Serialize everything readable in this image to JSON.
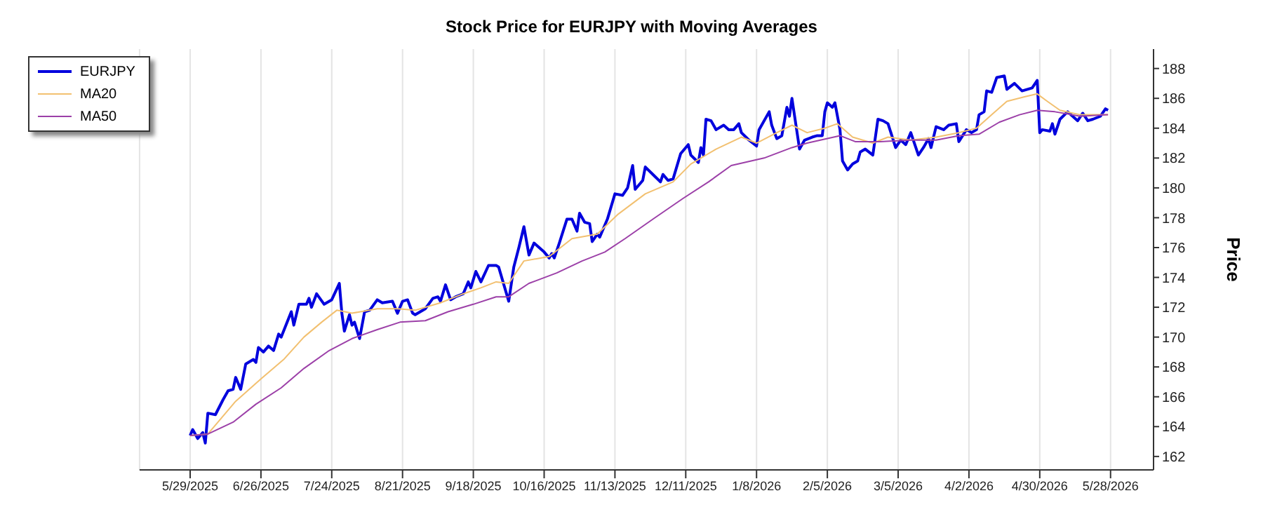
{
  "chart_data": {
    "type": "line",
    "title": "Stock Price for EURJPY with Moving Averages",
    "ylabel": "Price",
    "legend": "top left",
    "grid": "x",
    "line_style": "solid",
    "marker": "none",
    "xlim": [
      "2025-05-09",
      "2026-06-14"
    ],
    "xticks": [
      {
        "value": "2025-05-29",
        "label": "5/29/2025"
      },
      {
        "value": "2025-06-26",
        "label": "6/26/2025"
      },
      {
        "value": "2025-07-24",
        "label": "7/24/2025"
      },
      {
        "value": "2025-08-21",
        "label": "8/21/2025"
      },
      {
        "value": "2025-09-18",
        "label": "9/18/2025"
      },
      {
        "value": "2025-10-16",
        "label": "10/16/2025"
      },
      {
        "value": "2025-11-13",
        "label": "11/13/2025"
      },
      {
        "value": "2025-12-11",
        "label": "12/11/2025"
      },
      {
        "value": "2026-01-08",
        "label": "1/8/2026"
      },
      {
        "value": "2026-02-05",
        "label": "2/5/2026"
      },
      {
        "value": "2026-03-05",
        "label": "3/5/2026"
      },
      {
        "value": "2026-04-02",
        "label": "4/2/2026"
      },
      {
        "value": "2026-04-30",
        "label": "4/30/2026"
      },
      {
        "value": "2026-05-28",
        "label": "5/28/2026"
      }
    ],
    "ylim": [
      161.1,
      189.3
    ],
    "yticks": [
      162,
      164,
      166,
      168,
      170,
      172,
      174,
      176,
      178,
      180,
      182,
      184,
      186,
      188
    ],
    "series": [
      {
        "name": "EURJPY",
        "color": "#0000dd",
        "x": [
          "2025-05-29",
          "2025-05-30",
          "2025-06-01",
          "2025-06-03",
          "2025-06-04",
          "2025-06-05",
          "2025-06-08",
          "2025-06-11",
          "2025-06-13",
          "2025-06-15",
          "2025-06-16",
          "2025-06-18",
          "2025-06-20",
          "2025-06-23",
          "2025-06-24",
          "2025-06-25",
          "2025-06-27",
          "2025-06-29",
          "2025-07-01",
          "2025-07-03",
          "2025-07-04",
          "2025-07-08",
          "2025-07-09",
          "2025-07-11",
          "2025-07-14",
          "2025-07-15",
          "2025-07-16",
          "2025-07-18",
          "2025-07-21",
          "2025-07-24",
          "2025-07-27",
          "2025-07-28",
          "2025-07-29",
          "2025-07-31",
          "2025-08-01",
          "2025-08-02",
          "2025-08-04",
          "2025-08-06",
          "2025-08-08",
          "2025-08-11",
          "2025-08-13",
          "2025-08-17",
          "2025-08-19",
          "2025-08-21",
          "2025-08-23",
          "2025-08-25",
          "2025-08-26",
          "2025-08-30",
          "2025-09-02",
          "2025-09-04",
          "2025-09-05",
          "2025-09-07",
          "2025-09-09",
          "2025-09-11",
          "2025-09-14",
          "2025-09-16",
          "2025-09-17",
          "2025-09-19",
          "2025-09-21",
          "2025-09-24",
          "2025-09-27",
          "2025-09-28",
          "2025-10-02",
          "2025-10-04",
          "2025-10-06",
          "2025-10-08",
          "2025-10-10",
          "2025-10-12",
          "2025-10-16",
          "2025-10-18",
          "2025-10-19",
          "2025-10-20",
          "2025-10-22",
          "2025-10-25",
          "2025-10-27",
          "2025-10-29",
          "2025-10-30",
          "2025-11-01",
          "2025-11-03",
          "2025-11-04",
          "2025-11-06",
          "2025-11-07",
          "2025-11-09",
          "2025-11-10",
          "2025-11-13",
          "2025-11-16",
          "2025-11-18",
          "2025-11-20",
          "2025-11-21",
          "2025-11-24",
          "2025-11-25",
          "2025-11-28",
          "2025-12-01",
          "2025-12-02",
          "2025-12-04",
          "2025-12-06",
          "2025-12-09",
          "2025-12-12",
          "2025-12-13",
          "2025-12-16",
          "2025-12-17",
          "2025-12-18",
          "2025-12-19",
          "2025-12-21",
          "2025-12-23",
          "2025-12-26",
          "2025-12-28",
          "2025-12-30",
          "2026-01-01",
          "2026-01-02",
          "2026-01-05",
          "2026-01-08",
          "2026-01-09",
          "2026-01-13",
          "2026-01-14",
          "2026-01-16",
          "2026-01-18",
          "2026-01-20",
          "2026-01-21",
          "2026-01-22",
          "2026-01-25",
          "2026-01-27",
          "2026-01-30",
          "2026-02-01",
          "2026-02-03",
          "2026-02-04",
          "2026-02-05",
          "2026-02-07",
          "2026-02-08",
          "2026-02-10",
          "2026-02-11",
          "2026-02-13",
          "2026-02-15",
          "2026-02-17",
          "2026-02-18",
          "2026-02-20",
          "2026-02-23",
          "2026-02-25",
          "2026-02-27",
          "2026-03-01",
          "2026-03-04",
          "2026-03-06",
          "2026-03-08",
          "2026-03-10",
          "2026-03-13",
          "2026-03-15",
          "2026-03-17",
          "2026-03-18",
          "2026-03-20",
          "2026-03-23",
          "2026-03-25",
          "2026-03-28",
          "2026-03-29",
          "2026-04-01",
          "2026-04-03",
          "2026-04-05",
          "2026-04-06",
          "2026-04-08",
          "2026-04-09",
          "2026-04-11",
          "2026-04-13",
          "2026-04-16",
          "2026-04-17",
          "2026-04-20",
          "2026-04-23",
          "2026-04-27",
          "2026-04-29",
          "2026-04-30",
          "2026-05-01",
          "2026-05-04",
          "2026-05-05",
          "2026-05-06",
          "2026-05-08",
          "2026-05-11",
          "2026-05-13",
          "2026-05-15",
          "2026-05-17",
          "2026-05-19",
          "2026-05-21",
          "2026-05-24",
          "2026-05-26",
          "2026-05-27"
        ],
        "values": [
          163.4,
          163.8,
          163.2,
          163.6,
          162.9,
          164.9,
          164.8,
          165.8,
          166.4,
          166.5,
          167.3,
          166.5,
          168.2,
          168.5,
          168.3,
          169.3,
          169.0,
          169.4,
          169.1,
          170.2,
          170.0,
          171.7,
          170.8,
          172.2,
          172.2,
          172.6,
          172.0,
          172.9,
          172.2,
          172.5,
          173.6,
          171.6,
          170.4,
          171.5,
          170.8,
          171.0,
          169.9,
          171.7,
          171.8,
          172.5,
          172.3,
          172.4,
          171.6,
          172.4,
          172.5,
          171.6,
          171.5,
          171.9,
          172.6,
          172.7,
          172.4,
          173.5,
          172.5,
          172.7,
          172.9,
          173.7,
          173.3,
          174.4,
          173.7,
          174.8,
          174.8,
          174.7,
          172.4,
          174.7,
          176.0,
          177.4,
          175.5,
          176.3,
          175.7,
          175.3,
          175.6,
          175.3,
          176.3,
          177.9,
          177.9,
          177.1,
          178.3,
          177.7,
          177.6,
          176.4,
          176.9,
          176.7,
          177.5,
          177.9,
          179.6,
          179.5,
          180.0,
          181.5,
          179.9,
          180.5,
          181.4,
          180.9,
          180.4,
          180.9,
          180.5,
          180.6,
          182.3,
          182.9,
          182.2,
          181.7,
          182.7,
          182.2,
          184.6,
          184.5,
          183.9,
          184.2,
          183.9,
          183.9,
          184.3,
          183.7,
          183.2,
          182.8,
          183.9,
          185.1,
          184.2,
          183.3,
          183.5,
          185.4,
          184.8,
          186.0,
          182.6,
          183.2,
          183.4,
          183.5,
          183.5,
          185.1,
          185.7,
          185.4,
          185.7,
          183.9,
          181.8,
          181.2,
          181.6,
          181.8,
          182.4,
          182.6,
          182.2,
          184.6,
          184.5,
          184.3,
          182.7,
          183.2,
          182.9,
          183.7,
          182.2,
          182.7,
          183.3,
          182.7,
          184.1,
          183.9,
          184.2,
          184.3,
          183.1,
          183.9,
          183.7,
          183.9,
          184.9,
          185.1,
          186.5,
          186.4,
          187.4,
          187.5,
          186.6,
          187.0,
          186.5,
          186.7,
          187.2,
          183.7,
          183.9,
          183.8,
          184.3,
          183.6,
          184.6,
          185.1,
          184.8,
          184.5,
          185.0,
          184.5,
          184.6,
          184.8,
          185.3,
          185.2
        ]
      },
      {
        "name": "MA20",
        "color": "#f2c070",
        "x": [
          "2025-05-29",
          "2025-06-05",
          "2025-06-16",
          "2025-06-26",
          "2025-07-05",
          "2025-07-13",
          "2025-07-20",
          "2025-07-26",
          "2025-08-01",
          "2025-08-11",
          "2025-08-19",
          "2025-08-26",
          "2025-09-05",
          "2025-09-14",
          "2025-09-21",
          "2025-09-27",
          "2025-10-02",
          "2025-10-08",
          "2025-10-18",
          "2025-10-27",
          "2025-11-06",
          "2025-11-14",
          "2025-11-25",
          "2025-12-06",
          "2025-12-13",
          "2025-12-23",
          "2026-01-02",
          "2026-01-08",
          "2026-01-16",
          "2026-01-22",
          "2026-01-28",
          "2026-02-04",
          "2026-02-09",
          "2026-02-15",
          "2026-02-23",
          "2026-03-01",
          "2026-03-10",
          "2026-03-20",
          "2026-03-29",
          "2026-04-05",
          "2026-04-11",
          "2026-04-17",
          "2026-04-24",
          "2026-04-29",
          "2026-05-03",
          "2026-05-08",
          "2026-05-16",
          "2026-05-27"
        ],
        "values": [
          163.4,
          163.5,
          165.7,
          167.2,
          168.5,
          170.0,
          171.0,
          171.8,
          171.6,
          171.9,
          171.9,
          171.8,
          172.3,
          172.9,
          173.3,
          173.7,
          173.6,
          175.1,
          175.4,
          176.6,
          176.9,
          178.2,
          179.6,
          180.4,
          181.6,
          182.6,
          183.4,
          183.0,
          183.7,
          184.2,
          183.7,
          184.0,
          184.3,
          183.4,
          183.0,
          183.4,
          183.2,
          183.4,
          183.7,
          184.0,
          184.9,
          185.8,
          186.1,
          186.3,
          185.8,
          185.2,
          184.9,
          184.9
        ]
      },
      {
        "name": "MA50",
        "color": "#9c40a8",
        "x": [
          "2025-05-29",
          "2025-06-05",
          "2025-06-15",
          "2025-06-24",
          "2025-07-04",
          "2025-07-13",
          "2025-07-23",
          "2025-08-01",
          "2025-08-11",
          "2025-08-20",
          "2025-08-30",
          "2025-09-08",
          "2025-09-18",
          "2025-09-27",
          "2025-10-02",
          "2025-10-10",
          "2025-10-21",
          "2025-10-31",
          "2025-11-09",
          "2025-11-17",
          "2025-11-28",
          "2025-12-10",
          "2025-12-20",
          "2025-12-29",
          "2026-01-11",
          "2026-01-22",
          "2026-01-28",
          "2026-02-10",
          "2026-02-16",
          "2026-02-26",
          "2026-03-10",
          "2026-03-20",
          "2026-03-29",
          "2026-04-06",
          "2026-04-14",
          "2026-04-22",
          "2026-04-29",
          "2026-05-06",
          "2026-05-16",
          "2026-05-27"
        ],
        "values": [
          163.4,
          163.5,
          164.3,
          165.5,
          166.6,
          167.9,
          169.1,
          169.9,
          170.5,
          171.0,
          171.1,
          171.7,
          172.2,
          172.7,
          172.7,
          173.6,
          174.3,
          175.1,
          175.7,
          176.6,
          177.9,
          179.3,
          180.4,
          181.5,
          182.0,
          182.7,
          183.0,
          183.5,
          183.1,
          183.1,
          183.2,
          183.2,
          183.5,
          183.6,
          184.4,
          184.9,
          185.2,
          185.1,
          184.8,
          184.9
        ]
      }
    ]
  }
}
